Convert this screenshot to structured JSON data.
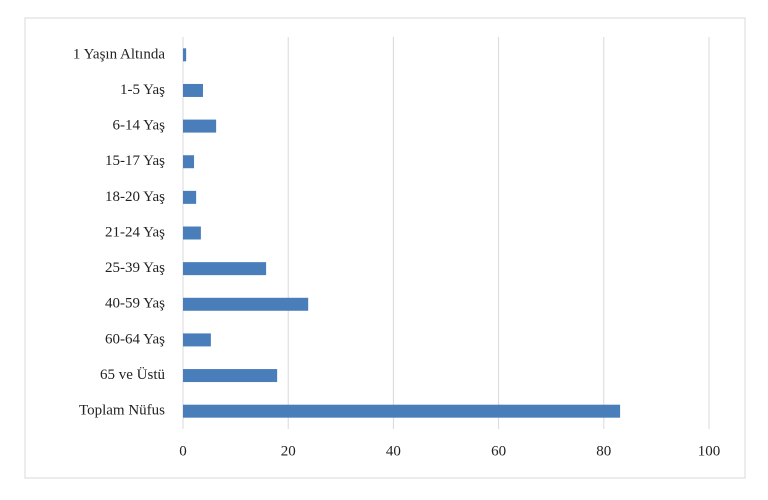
{
  "chart_data": {
    "type": "bar",
    "orientation": "horizontal",
    "categories": [
      "1 Yaşın Altında",
      "1-5 Yaş",
      "6-14 Yaş",
      "15-17 Yaş",
      "18-20 Yaş",
      "21-24 Yaş",
      "25-39 Yaş",
      "40-59 Yaş",
      "60-64 Yaş",
      "65 ve Üstü",
      "Toplam Nüfus"
    ],
    "values": [
      0.6,
      3.8,
      6.3,
      2.1,
      2.5,
      3.4,
      15.8,
      23.8,
      5.3,
      17.9,
      83.1
    ],
    "color": "#4a7ebb",
    "xlim": [
      0,
      100
    ],
    "xticks": [
      0,
      20,
      40,
      60,
      80,
      100
    ],
    "grid": true
  }
}
